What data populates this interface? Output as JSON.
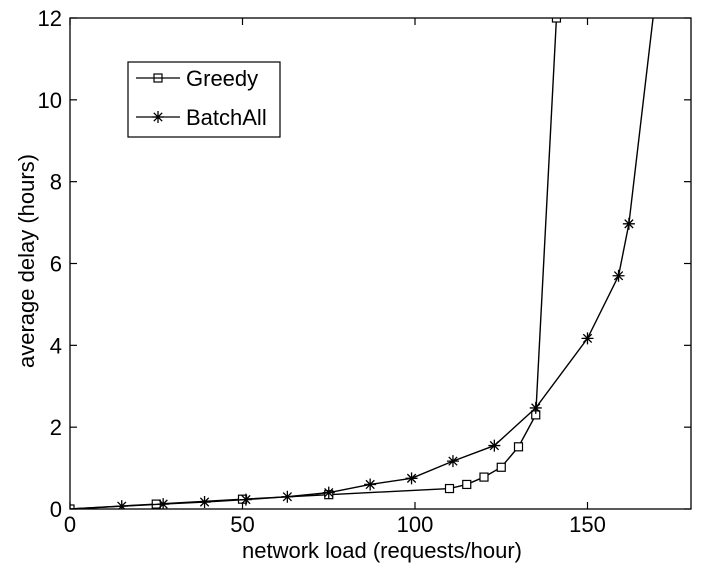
{
  "chart_data": {
    "type": "line",
    "title": "",
    "xlabel": "network load (requests/hour)",
    "ylabel": "average delay (hours)",
    "xlim": [
      0,
      180
    ],
    "ylim": [
      0,
      12
    ],
    "xticks": [
      0,
      50,
      100,
      150
    ],
    "yticks": [
      0,
      2,
      4,
      6,
      8,
      10,
      12
    ],
    "grid": false,
    "legend_position": "top-left",
    "series": [
      {
        "name": "Greedy",
        "marker": "square",
        "color": "#000000",
        "x": [
          0,
          25,
          50,
          75,
          110,
          115,
          120,
          125,
          130,
          135,
          141
        ],
        "y": [
          0.0,
          0.12,
          0.24,
          0.35,
          0.5,
          0.6,
          0.78,
          1.02,
          1.52,
          2.3,
          12.0
        ]
      },
      {
        "name": "BatchAll",
        "marker": "asterisk",
        "color": "#000000",
        "x": [
          0,
          15,
          27,
          39,
          51,
          63,
          75,
          87,
          99,
          111,
          123,
          135,
          150,
          159,
          162,
          169
        ],
        "y": [
          0.0,
          0.07,
          0.12,
          0.17,
          0.23,
          0.3,
          0.4,
          0.6,
          0.75,
          1.17,
          1.55,
          2.47,
          4.17,
          5.7,
          6.97,
          12.0
        ],
        "marked": [
          false,
          true,
          true,
          true,
          true,
          true,
          true,
          true,
          true,
          true,
          true,
          true,
          true,
          true,
          true,
          false
        ]
      }
    ]
  }
}
